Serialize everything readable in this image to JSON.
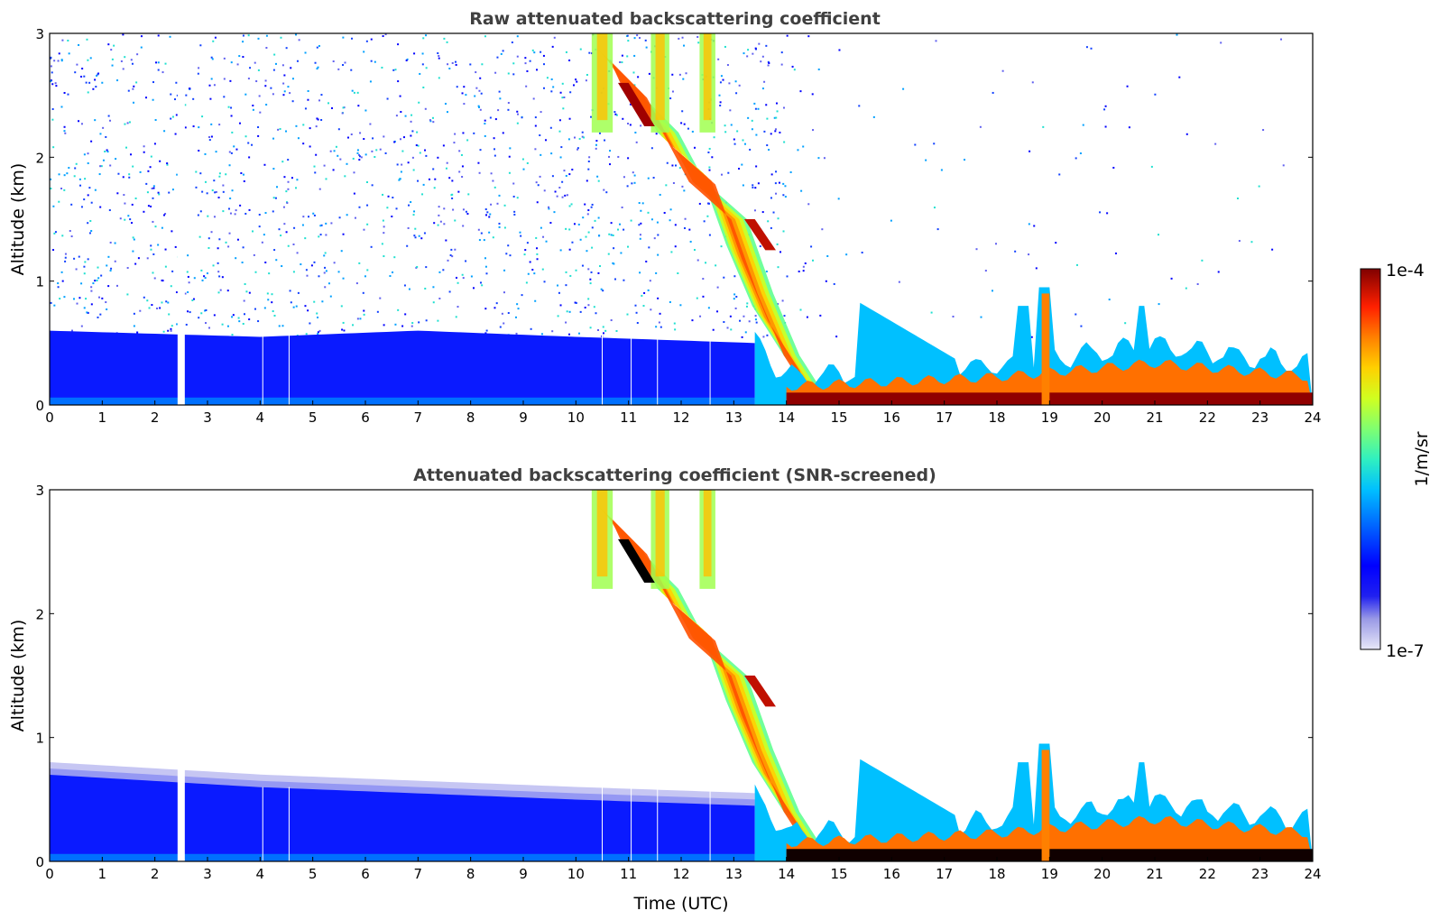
{
  "chart_data": [
    {
      "type": "heatmap",
      "title": "Raw attenuated backscattering coefficient",
      "xlabel": "",
      "ylabel": "Altitude (km)",
      "xlim": [
        0,
        24
      ],
      "ylim": [
        0,
        3
      ],
      "xticks": [
        "0",
        "1",
        "2",
        "3",
        "4",
        "5",
        "6",
        "7",
        "8",
        "9",
        "10",
        "11",
        "12",
        "13",
        "14",
        "15",
        "16",
        "17",
        "18",
        "19",
        "20",
        "21",
        "22",
        "23",
        "24"
      ],
      "yticks": [
        "0",
        "1",
        "2",
        "3"
      ],
      "missing_data_gap_utc": 2.5,
      "boundary_layer_top_km": [
        [
          0,
          0.6
        ],
        [
          4,
          0.55
        ],
        [
          7,
          0.6
        ],
        [
          10,
          0.55
        ],
        [
          13.4,
          0.5
        ],
        [
          14,
          0.2
        ],
        [
          16,
          0.25
        ],
        [
          18,
          0.3
        ],
        [
          19,
          0.35
        ],
        [
          21,
          0.45
        ],
        [
          24,
          0.3
        ]
      ],
      "precipitation_band": [
        [
          10.8,
          2.6
        ],
        [
          11.5,
          2.3
        ],
        [
          12,
          1.9
        ],
        [
          12.8,
          1.6
        ],
        [
          13.3,
          1.0
        ],
        [
          13.8,
          0.5
        ],
        [
          14.4,
          0.1
        ]
      ],
      "noise_level": "high"
    },
    {
      "type": "heatmap",
      "title": "Attenuated backscattering coefficient (SNR-screened)",
      "xlabel": "Time (UTC)",
      "ylabel": "Altitude (km)",
      "xlim": [
        0,
        24
      ],
      "ylim": [
        0,
        3
      ],
      "xticks": [
        "0",
        "1",
        "2",
        "3",
        "4",
        "5",
        "6",
        "7",
        "8",
        "9",
        "10",
        "11",
        "12",
        "13",
        "14",
        "15",
        "16",
        "17",
        "18",
        "19",
        "20",
        "21",
        "22",
        "23",
        "24"
      ],
      "yticks": [
        "0",
        "1",
        "2",
        "3"
      ],
      "missing_data_gap_utc": 2.5,
      "boundary_layer_top_km": [
        [
          0,
          0.75
        ],
        [
          4,
          0.65
        ],
        [
          7,
          0.6
        ],
        [
          10,
          0.55
        ],
        [
          13.4,
          0.5
        ],
        [
          14,
          0.2
        ],
        [
          16,
          0.25
        ],
        [
          18,
          0.3
        ],
        [
          19,
          0.35
        ],
        [
          21,
          0.45
        ],
        [
          24,
          0.3
        ]
      ],
      "precipitation_band": [
        [
          10.8,
          2.6
        ],
        [
          11.5,
          2.3
        ],
        [
          12,
          1.9
        ],
        [
          12.8,
          1.6
        ],
        [
          13.3,
          1.0
        ],
        [
          13.8,
          0.5
        ],
        [
          14.4,
          0.1
        ]
      ],
      "noise_level": "none"
    }
  ],
  "colorbar": {
    "label": "1/m/sr",
    "max_label": "1e-4",
    "min_label": "1e-7",
    "scale": "log",
    "range": [
      1e-07,
      0.0001
    ],
    "colormap": [
      "#e4e4f6",
      "#9999e6",
      "#3333ee",
      "#0000ff",
      "#0040ff",
      "#0090ff",
      "#00d0ff",
      "#20f0d0",
      "#60ff90",
      "#a0ff50",
      "#e0ff10",
      "#ffd000",
      "#ff9000",
      "#ff5000",
      "#e01000",
      "#a00000",
      "#800000"
    ]
  }
}
